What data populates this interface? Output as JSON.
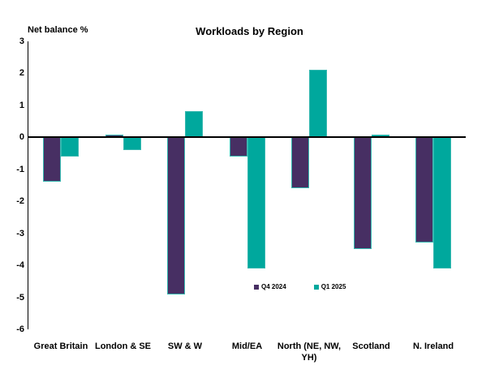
{
  "chart_data": {
    "type": "bar",
    "title": "Workloads by Region",
    "ylabel": "Net balance %",
    "categories": [
      "Great Britain",
      "London & SE",
      "SW & W",
      "Mid/EA",
      "North (NE, NW, YH)",
      "Scotland",
      "N. Ireland"
    ],
    "series": [
      {
        "name": "Q4 2024",
        "color": "#472f63",
        "values": [
          -1.4,
          0.0,
          -4.9,
          -0.6,
          -1.6,
          -3.5,
          -3.3
        ]
      },
      {
        "name": "Q1 2025",
        "color": "#00a89d",
        "values": [
          -0.6,
          -0.4,
          0.8,
          -4.1,
          2.1,
          0.0,
          -4.1
        ]
      }
    ],
    "ylim": [
      -6,
      3
    ],
    "ytick_step": 1,
    "bar_border_color": "#35b8b0",
    "axis_color": "#000000",
    "grid": false,
    "legend_position": "bottom-center-inside"
  }
}
